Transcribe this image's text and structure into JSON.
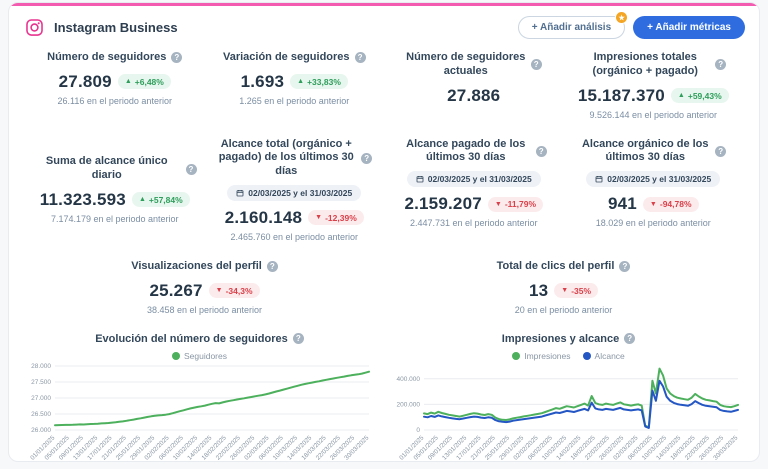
{
  "header": {
    "title": "Instagram Business",
    "buttons": {
      "add_analysis": "+ Añadir análisis",
      "add_analysis_badge_icon": "★",
      "add_metrics": "+ Añadir métricas"
    }
  },
  "colors": {
    "accent_pink": "#f35bb0",
    "instagram_pink": "#e8338f",
    "primary_blue": "#2e6ce0",
    "positive_green": "#2e9e5b",
    "negative_red": "#d9404a",
    "chart_green": "#4cb05c",
    "chart_blue": "#2456c4",
    "badge_orange": "#f5a524"
  },
  "metrics": [
    {
      "title": "Número de seguidores",
      "value": "27.809",
      "arrow": "▲",
      "delta": "+6,48%",
      "direction": "up",
      "previous": "26.116 en el periodo anterior"
    },
    {
      "title": "Variación de seguidores",
      "value": "1.693",
      "arrow": "▲",
      "delta": "+33,83%",
      "direction": "up",
      "previous": "1.265 en el periodo anterior"
    },
    {
      "title": "Número de seguidores actuales",
      "value": "27.886"
    },
    {
      "title": "Impresiones totales (orgánico + pagado)",
      "value": "15.187.370",
      "arrow": "▲",
      "delta": "+59,43%",
      "direction": "up",
      "previous": "9.526.144 en el periodo anterior"
    },
    {
      "title": "Suma de alcance único diario",
      "value": "11.323.593",
      "arrow": "▲",
      "delta": "+57,84%",
      "direction": "up",
      "previous": "7.174.179 en el periodo anterior"
    },
    {
      "title": "Alcance total (orgánico + pagado) de los últimos 30 días",
      "date_range": "02/03/2025 y el 31/03/2025",
      "value": "2.160.148",
      "arrow": "▼",
      "delta": "-12,39%",
      "direction": "down",
      "previous": "2.465.760 en el periodo anterior"
    },
    {
      "title": "Alcance pagado de los últimos 30 días",
      "date_range": "02/03/2025 y el 31/03/2025",
      "value": "2.159.207",
      "arrow": "▼",
      "delta": "-11,79%",
      "direction": "down",
      "previous": "2.447.731 en el periodo anterior"
    },
    {
      "title": "Alcance orgánico de los últimos 30 días",
      "date_range": "02/03/2025 y el 31/03/2025",
      "value": "941",
      "arrow": "▼",
      "delta": "-94,78%",
      "direction": "down",
      "previous": "18.029 en el periodo anterior"
    },
    {
      "title": "Visualizaciones del perfil",
      "value": "25.267",
      "arrow": "▼",
      "delta": "-34,3%",
      "direction": "down",
      "previous": "38.458 en el periodo anterior"
    },
    {
      "title": "Total de clics del perfil",
      "value": "13",
      "arrow": "▼",
      "delta": "-35%",
      "direction": "down",
      "previous": "20 en el periodo anterior"
    }
  ],
  "chart_data": [
    {
      "type": "line",
      "title": "Evolución del número de seguidores",
      "legend": [
        {
          "name": "Seguidores",
          "color": "#4cb05c"
        }
      ],
      "ylim": [
        26000,
        28000
      ],
      "y_ticks": [
        {
          "v": 28000,
          "label": "28.000"
        },
        {
          "v": 27500,
          "label": "27.500"
        },
        {
          "v": 27000,
          "label": "27.000"
        },
        {
          "v": 26500,
          "label": "26.500"
        },
        {
          "v": 26000,
          "label": "26.000"
        }
      ],
      "tick_every": 4,
      "x_tick_labels": [
        "01/01/2025",
        "05/01/2025",
        "09/01/2025",
        "13/01/2025",
        "17/01/2025",
        "21/01/2025",
        "25/01/2025",
        "29/01/2025",
        "02/02/2025",
        "06/02/2025",
        "10/02/2025",
        "14/02/2025",
        "18/02/2025",
        "22/02/2025",
        "26/02/2025",
        "02/03/2025",
        "06/03/2025",
        "10/03/2025",
        "14/03/2025",
        "18/03/2025",
        "22/03/2025",
        "26/03/2025",
        "30/03/2025"
      ],
      "series": [
        {
          "name": "Seguidores",
          "color": "#4cb05c",
          "values": [
            26150,
            26152,
            26156,
            26160,
            26158,
            26164,
            26170,
            26175,
            26172,
            26180,
            26186,
            26192,
            26198,
            26205,
            26212,
            26220,
            26230,
            26242,
            26255,
            26270,
            26288,
            26306,
            26326,
            26346,
            26366,
            26388,
            26408,
            26428,
            26444,
            26456,
            26466,
            26478,
            26498,
            26526,
            26556,
            26586,
            26616,
            26646,
            26676,
            26700,
            26722,
            26742,
            26762,
            26792,
            26820,
            26840,
            26832,
            26862,
            26892,
            26912,
            26932,
            26952,
            26972,
            26992,
            27012,
            27032,
            27052,
            27072,
            27092,
            27112,
            27142,
            27172,
            27202,
            27232,
            27262,
            27292,
            27322,
            27352,
            27382,
            27412,
            27438,
            27460,
            27482,
            27502,
            27522,
            27546,
            27570,
            27590,
            27610,
            27630,
            27650,
            27670,
            27690,
            27710,
            27726,
            27742,
            27762,
            27792,
            27822
          ]
        }
      ]
    },
    {
      "type": "line",
      "title": "Impresiones y alcance",
      "legend": [
        {
          "name": "Impresiones",
          "color": "#4cb05c"
        },
        {
          "name": "Alcance",
          "color": "#2456c4"
        }
      ],
      "ylim": [
        0,
        500000
      ],
      "y_ticks": [
        {
          "v": 400000,
          "label": "400.000"
        },
        {
          "v": 200000,
          "label": "200.000"
        },
        {
          "v": 0,
          "label": "0"
        }
      ],
      "tick_every": 4,
      "x_tick_labels": [
        "01/01/2025",
        "05/01/2025",
        "09/01/2025",
        "13/01/2025",
        "17/01/2025",
        "21/01/2025",
        "25/01/2025",
        "29/01/2025",
        "02/02/2025",
        "06/02/2025",
        "10/02/2025",
        "14/02/2025",
        "18/02/2025",
        "22/02/2025",
        "26/02/2025",
        "02/03/2025",
        "06/03/2025",
        "10/03/2025",
        "14/03/2025",
        "18/03/2025",
        "22/03/2025",
        "26/03/2025",
        "30/03/2025"
      ],
      "series": [
        {
          "name": "Impresiones",
          "color": "#4cb05c",
          "values": [
            130000,
            124000,
            136000,
            128000,
            142000,
            133000,
            126000,
            119000,
            114000,
            109000,
            105000,
            112000,
            119000,
            126000,
            131000,
            128000,
            121000,
            117000,
            124000,
            119000,
            96000,
            85000,
            80000,
            78000,
            83000,
            91000,
            96000,
            101000,
            106000,
            111000,
            116000,
            121000,
            126000,
            131000,
            141000,
            151000,
            161000,
            171000,
            166000,
            176000,
            186000,
            181000,
            176000,
            186000,
            196000,
            206000,
            191000,
            266000,
            211000,
            201000,
            196000,
            206000,
            201000,
            196000,
            206000,
            216000,
            201000,
            196000,
            191000,
            196000,
            201000,
            191000,
            35000,
            20000,
            385000,
            285000,
            480000,
            425000,
            325000,
            285000,
            265000,
            252000,
            246000,
            241000,
            236000,
            252000,
            282000,
            262000,
            246000,
            236000,
            231000,
            226000,
            221000,
            196000,
            186000,
            181000,
            179000,
            186000,
            196000
          ]
        },
        {
          "name": "Alcance",
          "color": "#2456c4",
          "values": [
            104000,
            99000,
            109000,
            102000,
            114000,
            106000,
            101000,
            95000,
            91000,
            87000,
            84000,
            90000,
            95000,
            101000,
            105000,
            102000,
            97000,
            94000,
            99000,
            95000,
            77000,
            68000,
            64000,
            62000,
            66000,
            73000,
            77000,
            81000,
            85000,
            89000,
            93000,
            97000,
            101000,
            105000,
            113000,
            121000,
            129000,
            137000,
            133000,
            141000,
            149000,
            145000,
            141000,
            149000,
            157000,
            165000,
            153000,
            213000,
            169000,
            161000,
            157000,
            165000,
            161000,
            157000,
            165000,
            173000,
            161000,
            157000,
            153000,
            157000,
            161000,
            153000,
            28000,
            16000,
            308000,
            228000,
            384000,
            340000,
            260000,
            228000,
            212000,
            202000,
            197000,
            193000,
            189000,
            202000,
            226000,
            210000,
            197000,
            189000,
            185000,
            181000,
            177000,
            157000,
            149000,
            145000,
            142000,
            149000,
            157000
          ]
        }
      ]
    }
  ]
}
